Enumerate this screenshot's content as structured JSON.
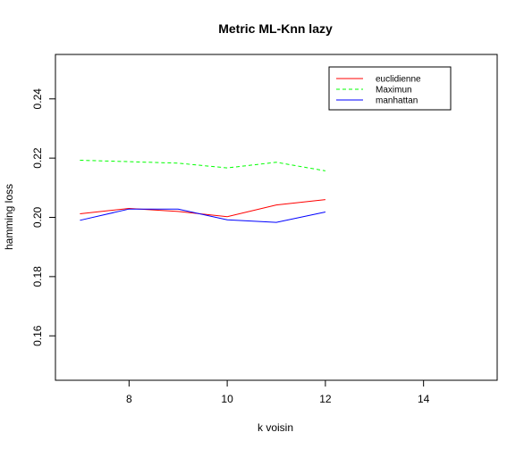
{
  "chart_data": {
    "type": "line",
    "title": "Metric ML-Knn lazy",
    "xlabel": "k voisin",
    "ylabel": "hamming loss",
    "xlim": [
      6.5,
      15.5
    ],
    "ylim": [
      0.145,
      0.255
    ],
    "x_ticks": [
      "8",
      "10",
      "12",
      "14"
    ],
    "y_ticks": [
      "0.16",
      "0.18",
      "0.20",
      "0.22",
      "0.24"
    ],
    "x": [
      7,
      8,
      9,
      10,
      11,
      12
    ],
    "grid": false,
    "legend_position": "top-right",
    "series": [
      {
        "name": "euclidienne",
        "color": "#ff0000",
        "dash": "solid",
        "values": [
          0.2012,
          0.203,
          0.202,
          0.2002,
          0.2042,
          0.206
        ]
      },
      {
        "name": "Maximun",
        "color": "#00ff00",
        "dash": "dashed",
        "values": [
          0.2193,
          0.2188,
          0.2183,
          0.2167,
          0.2186,
          0.2157
        ]
      },
      {
        "name": "manhattan",
        "color": "#0000ff",
        "dash": "solid",
        "values": [
          0.199,
          0.2028,
          0.2028,
          0.1992,
          0.1983,
          0.2018
        ]
      }
    ]
  }
}
